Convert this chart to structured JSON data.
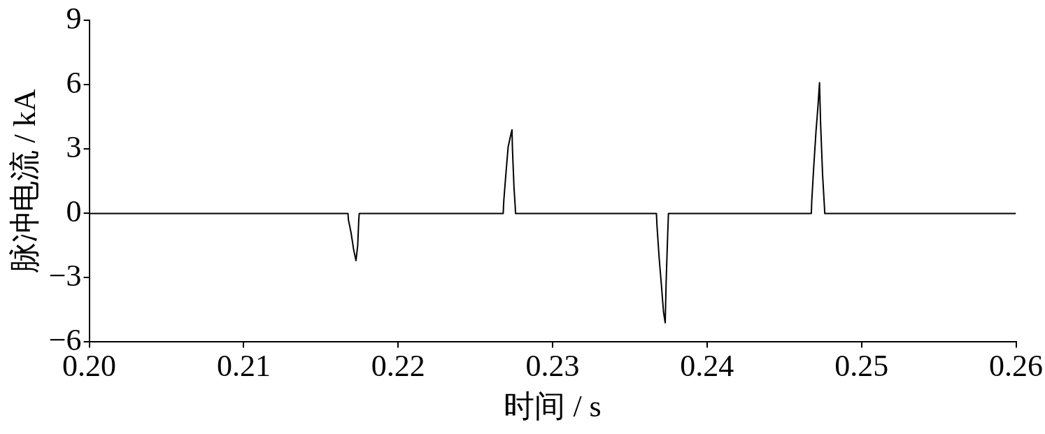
{
  "chart_data": {
    "type": "line",
    "xlabel": "时间 / s",
    "ylabel": "脉冲电流 / kA",
    "x": [
      0.2,
      0.21675,
      0.21678,
      0.21695,
      0.21712,
      0.21727,
      0.21738,
      0.21745,
      0.21748,
      0.2268,
      0.22684,
      0.22697,
      0.22712,
      0.22727,
      0.22737,
      0.2274,
      0.2275,
      0.22758,
      0.2276,
      0.23672,
      0.23676,
      0.2369,
      0.23705,
      0.23718,
      0.23729,
      0.23735,
      0.23745,
      0.2375,
      0.24675,
      0.24678,
      0.2469,
      0.24705,
      0.24718,
      0.24728,
      0.24735,
      0.24748,
      0.2476,
      0.24762,
      0.26
    ],
    "series": [
      {
        "color": "#000000",
        "values": [
          0,
          0,
          -0.3,
          -0.9,
          -1.7,
          -2.2,
          -1.5,
          -0.3,
          0,
          0,
          0.6,
          1.8,
          3.1,
          3.6,
          3.9,
          3.0,
          1.2,
          0.3,
          0,
          0,
          -0.6,
          -2.1,
          -3.4,
          -4.6,
          -5.1,
          -3.2,
          -1.0,
          0,
          0,
          0.6,
          2.1,
          3.8,
          5.0,
          6.1,
          4.2,
          1.8,
          0.3,
          0,
          0
        ]
      }
    ],
    "xlim": [
      0.2,
      0.26
    ],
    "xticks": [
      {
        "value": 0.2,
        "label": "0.20"
      },
      0.21,
      0.22,
      0.23,
      0.24,
      0.25,
      {
        "value": 0.26,
        "label": "0.26"
      }
    ],
    "ylim": [
      -6,
      9
    ],
    "yticks": [
      {
        "value": -6,
        "label": "−6"
      },
      {
        "value": -3,
        "label": "−3"
      },
      0,
      3,
      6,
      9
    ],
    "grid": false,
    "legend": false,
    "marker": "none",
    "line_style": "solid"
  }
}
